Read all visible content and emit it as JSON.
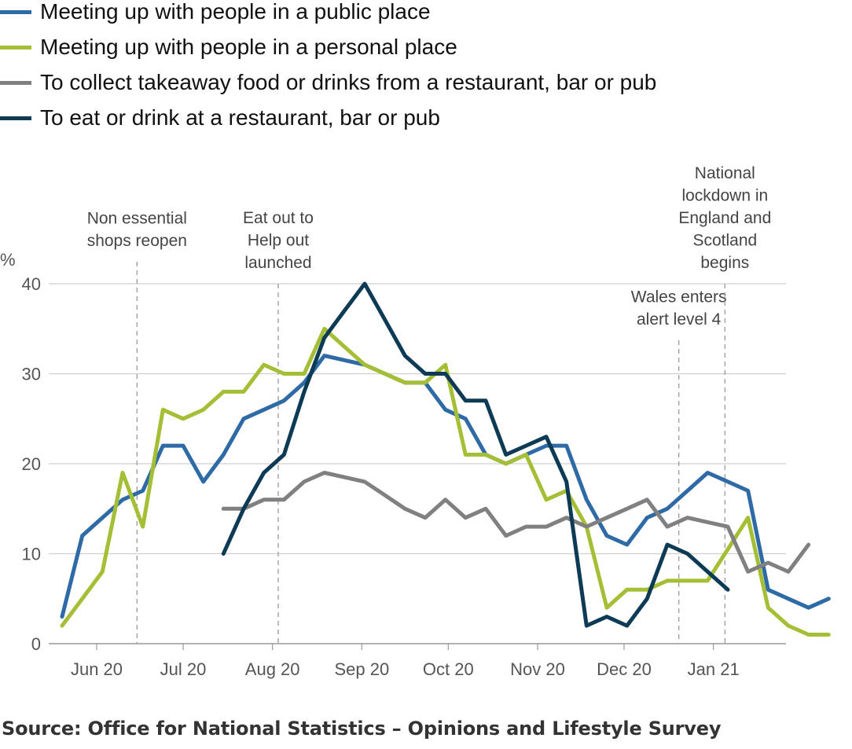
{
  "chart_data": {
    "type": "line",
    "ylabel": "%",
    "ylim": [
      0,
      40
    ],
    "yticks": [
      0,
      10,
      20,
      30,
      40
    ],
    "xlim": [
      "2020-05-20",
      "2021-01-31"
    ],
    "xticks": [
      {
        "date": "2020-06-01",
        "label": "Jun 20"
      },
      {
        "date": "2020-07-01",
        "label": "Jul 20"
      },
      {
        "date": "2020-08-01",
        "label": "Aug 20"
      },
      {
        "date": "2020-09-01",
        "label": "Sep 20"
      },
      {
        "date": "2020-10-01",
        "label": "Oct 20"
      },
      {
        "date": "2020-11-01",
        "label": "Nov 20"
      },
      {
        "date": "2020-12-01",
        "label": "Dec 20"
      },
      {
        "date": "2021-01-01",
        "label": "Jan 21"
      }
    ],
    "grid": true,
    "legend_placement": "top",
    "series": [
      {
        "name": "Meeting up with people in a public place",
        "color": "#2d6aa6",
        "points": [
          [
            "2020-05-20",
            3
          ],
          [
            "2020-05-27",
            12
          ],
          [
            "2020-06-03",
            14
          ],
          [
            "2020-06-10",
            16
          ],
          [
            "2020-06-17",
            17
          ],
          [
            "2020-06-24",
            22
          ],
          [
            "2020-07-01",
            22
          ],
          [
            "2020-07-08",
            18
          ],
          [
            "2020-07-15",
            21
          ],
          [
            "2020-07-22",
            25
          ],
          [
            "2020-07-29",
            26
          ],
          [
            "2020-08-05",
            27
          ],
          [
            "2020-08-12",
            29
          ],
          [
            "2020-08-19",
            32
          ],
          [
            "2020-08-26",
            31.5
          ],
          [
            "2020-09-02",
            31
          ],
          [
            "2020-09-09",
            30
          ],
          [
            "2020-09-16",
            29
          ],
          [
            "2020-09-23",
            29
          ],
          [
            "2020-09-30",
            26
          ],
          [
            "2020-10-07",
            25
          ],
          [
            "2020-10-14",
            21
          ],
          [
            "2020-10-21",
            20
          ],
          [
            "2020-10-28",
            21
          ],
          [
            "2020-11-04",
            22
          ],
          [
            "2020-11-11",
            22
          ],
          [
            "2020-11-18",
            16
          ],
          [
            "2020-11-25",
            12
          ],
          [
            "2020-12-02",
            11
          ],
          [
            "2020-12-09",
            14
          ],
          [
            "2020-12-16",
            15
          ],
          [
            "2020-12-23",
            17
          ],
          [
            "2020-12-30",
            19
          ],
          [
            "2021-01-06",
            18
          ],
          [
            "2021-01-13",
            17
          ],
          [
            "2021-01-20",
            6
          ],
          [
            "2021-01-27",
            5
          ],
          [
            "2021-02-03",
            4
          ],
          [
            "2021-02-10",
            5
          ]
        ]
      },
      {
        "name": "Meeting up with people in a personal place",
        "color": "#a4bf35",
        "points": [
          [
            "2020-05-20",
            2
          ],
          [
            "2020-05-27",
            5
          ],
          [
            "2020-06-03",
            8
          ],
          [
            "2020-06-10",
            19
          ],
          [
            "2020-06-17",
            13
          ],
          [
            "2020-06-24",
            26
          ],
          [
            "2020-07-01",
            25
          ],
          [
            "2020-07-08",
            26
          ],
          [
            "2020-07-15",
            28
          ],
          [
            "2020-07-22",
            28
          ],
          [
            "2020-07-29",
            31
          ],
          [
            "2020-08-05",
            30
          ],
          [
            "2020-08-12",
            30
          ],
          [
            "2020-08-19",
            35
          ],
          [
            "2020-08-26",
            33
          ],
          [
            "2020-09-02",
            31
          ],
          [
            "2020-09-09",
            30
          ],
          [
            "2020-09-16",
            29
          ],
          [
            "2020-09-23",
            29
          ],
          [
            "2020-09-30",
            31
          ],
          [
            "2020-10-07",
            21
          ],
          [
            "2020-10-14",
            21
          ],
          [
            "2020-10-21",
            20
          ],
          [
            "2020-10-28",
            21
          ],
          [
            "2020-11-04",
            16
          ],
          [
            "2020-11-11",
            17
          ],
          [
            "2020-11-18",
            13
          ],
          [
            "2020-11-25",
            4
          ],
          [
            "2020-12-02",
            6
          ],
          [
            "2020-12-09",
            6
          ],
          [
            "2020-12-16",
            7
          ],
          [
            "2020-12-23",
            7
          ],
          [
            "2020-12-30",
            7
          ],
          [
            "2021-01-06",
            10.5
          ],
          [
            "2021-01-13",
            14
          ],
          [
            "2021-01-20",
            4
          ],
          [
            "2021-01-27",
            2
          ],
          [
            "2021-02-03",
            1
          ],
          [
            "2021-02-10",
            1
          ]
        ]
      },
      {
        "name": "To collect takeaway food or drinks from a restaurant, bar or pub",
        "color": "#808080",
        "points": [
          [
            "2020-07-15",
            15
          ],
          [
            "2020-07-22",
            15
          ],
          [
            "2020-07-29",
            16
          ],
          [
            "2020-08-05",
            16
          ],
          [
            "2020-08-12",
            18
          ],
          [
            "2020-08-19",
            19
          ],
          [
            "2020-08-26",
            18.5
          ],
          [
            "2020-09-02",
            18
          ],
          [
            "2020-09-09",
            16.5
          ],
          [
            "2020-09-16",
            15
          ],
          [
            "2020-09-23",
            14
          ],
          [
            "2020-09-30",
            16
          ],
          [
            "2020-10-07",
            14
          ],
          [
            "2020-10-14",
            15
          ],
          [
            "2020-10-21",
            12
          ],
          [
            "2020-10-28",
            13
          ],
          [
            "2020-11-04",
            13
          ],
          [
            "2020-11-11",
            14
          ],
          [
            "2020-11-18",
            13
          ],
          [
            "2020-11-25",
            14
          ],
          [
            "2020-12-02",
            15
          ],
          [
            "2020-12-09",
            16
          ],
          [
            "2020-12-16",
            13
          ],
          [
            "2020-12-23",
            14
          ],
          [
            "2020-12-30",
            13.5
          ],
          [
            "2021-01-06",
            13
          ],
          [
            "2021-01-13",
            8
          ],
          [
            "2021-01-20",
            9
          ],
          [
            "2021-01-27",
            8
          ],
          [
            "2021-02-03",
            11
          ]
        ]
      },
      {
        "name": "To eat or drink at a restaurant, bar or pub",
        "color": "#0d3a54",
        "points": [
          [
            "2020-07-15",
            10
          ],
          [
            "2020-07-22",
            15
          ],
          [
            "2020-07-29",
            19
          ],
          [
            "2020-08-05",
            21
          ],
          [
            "2020-08-12",
            28
          ],
          [
            "2020-08-19",
            34
          ],
          [
            "2020-08-26",
            37
          ],
          [
            "2020-09-02",
            40
          ],
          [
            "2020-09-09",
            36
          ],
          [
            "2020-09-16",
            32
          ],
          [
            "2020-09-23",
            30
          ],
          [
            "2020-09-30",
            30
          ],
          [
            "2020-10-07",
            27
          ],
          [
            "2020-10-14",
            27
          ],
          [
            "2020-10-21",
            21
          ],
          [
            "2020-10-28",
            22
          ],
          [
            "2020-11-04",
            23
          ],
          [
            "2020-11-11",
            18
          ],
          [
            "2020-11-18",
            2
          ],
          [
            "2020-11-25",
            3
          ],
          [
            "2020-12-02",
            2
          ],
          [
            "2020-12-09",
            5
          ],
          [
            "2020-12-16",
            11
          ],
          [
            "2020-12-23",
            10
          ],
          [
            "2020-12-30",
            8
          ],
          [
            "2021-01-06",
            6
          ]
        ]
      }
    ],
    "annotations": [
      {
        "date": "2020-06-15",
        "lines": [
          "Non essential",
          "shops reopen"
        ]
      },
      {
        "date": "2020-08-03",
        "lines": [
          "Eat out to",
          "Help out",
          "launched"
        ]
      },
      {
        "date": "2020-12-20",
        "lines": [
          "Wales enters",
          "alert level 4"
        ]
      },
      {
        "date": "2021-01-05",
        "lines": [
          "National",
          "lockdown in",
          "England and",
          "Scotland",
          "begins"
        ]
      }
    ]
  },
  "source": "Source: Office for National Statistics – Opinions and Lifestyle Survey"
}
